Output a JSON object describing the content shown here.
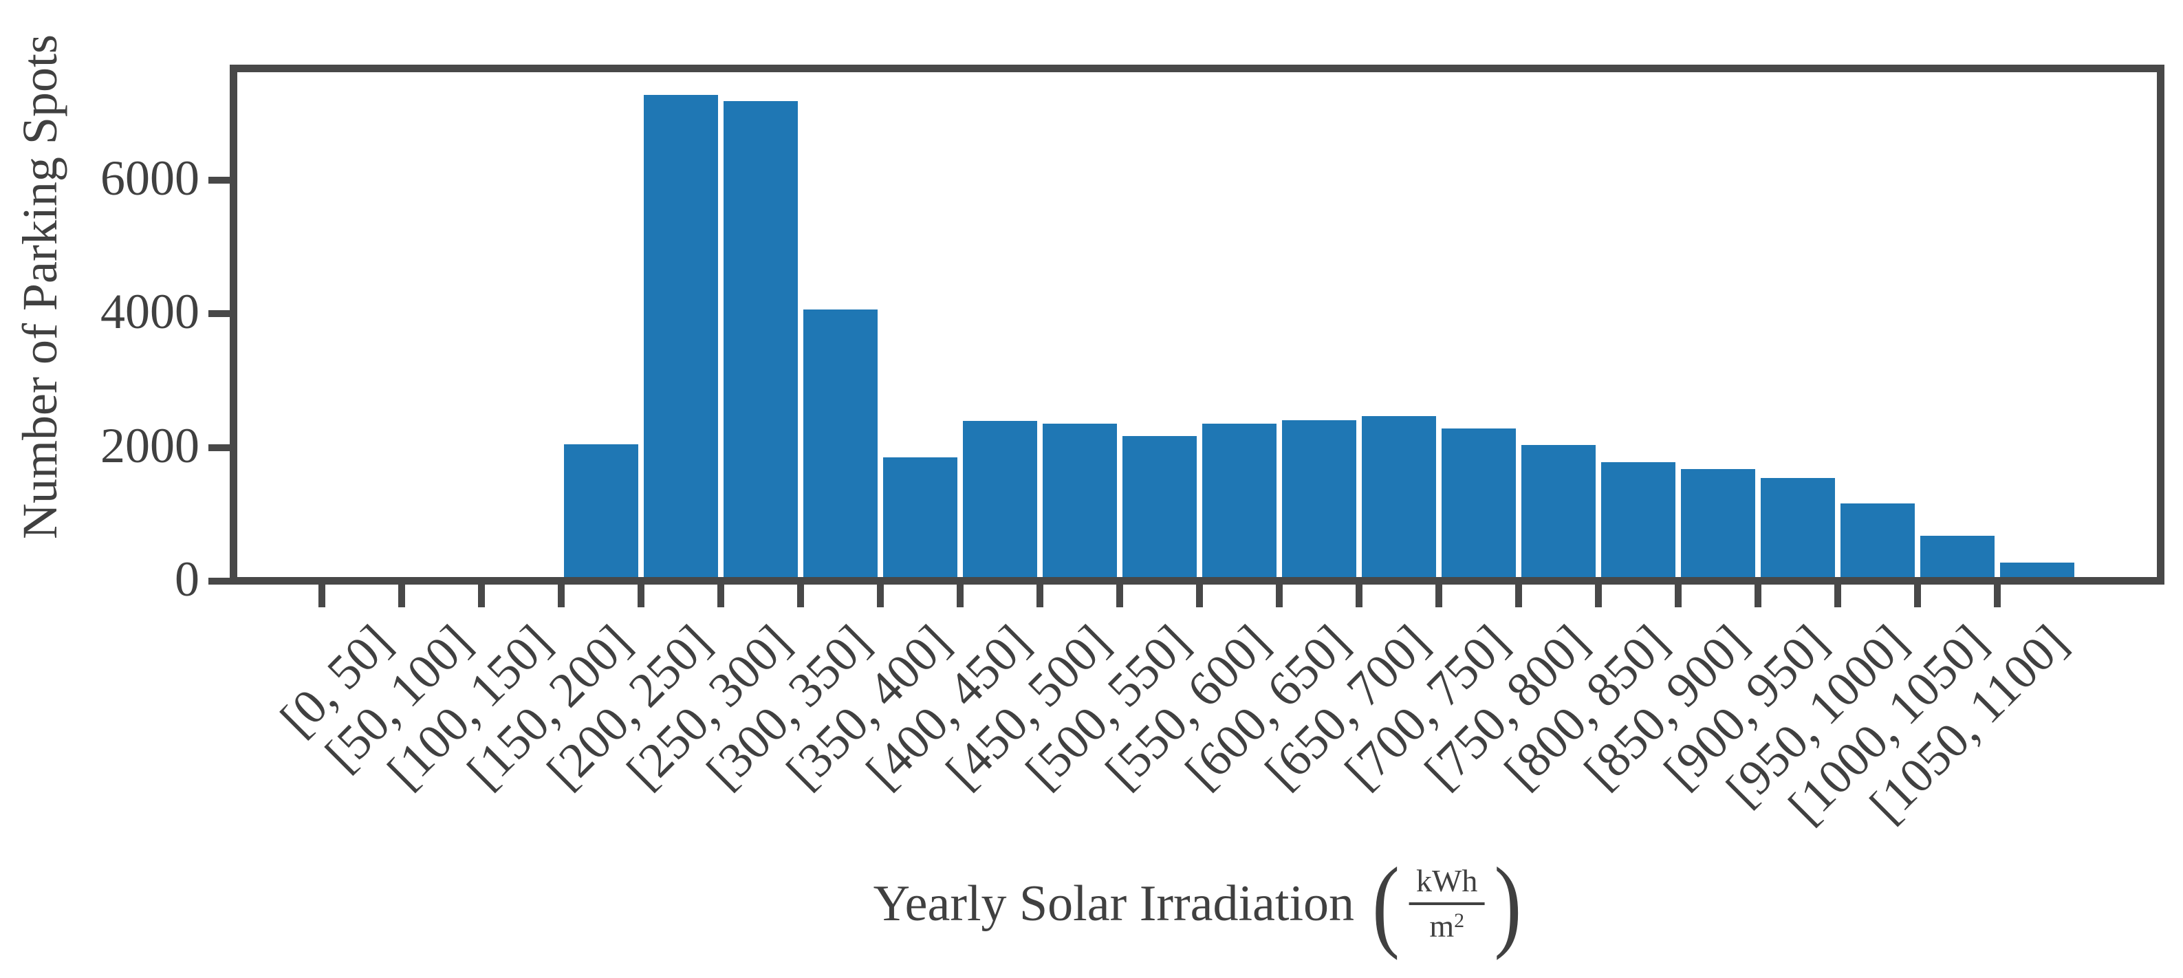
{
  "chart_data": {
    "type": "bar",
    "title": "",
    "categories": [
      "[0, 50]",
      "[50, 100]",
      "[100, 150]",
      "[150, 200]",
      "[200, 250]",
      "[250, 300]",
      "[300, 350]",
      "[350, 400]",
      "[400, 450]",
      "[450, 500]",
      "[500, 550]",
      "[550, 600]",
      "[600, 650]",
      "[650, 700]",
      "[700, 750]",
      "[750, 800]",
      "[800, 850]",
      "[850, 900]",
      "[900, 950]",
      "[950, 1000]",
      "[1000, 1050]",
      "[1050, 1100]"
    ],
    "values": [
      0,
      0,
      0,
      2050,
      7280,
      7180,
      4070,
      1850,
      2400,
      2360,
      2170,
      2360,
      2410,
      2470,
      2280,
      2040,
      1780,
      1680,
      1540,
      1160,
      680,
      280
    ],
    "ylabel": "Number of Parking Spots",
    "xlabel": {
      "prefix": "Yearly Solar Irradiation",
      "open_paren": "(",
      "unit_numerator": "kWh",
      "unit_denominator_base": "m",
      "unit_denominator_exponent": "2",
      "close_paren": ")"
    },
    "yticks": [
      "0",
      "2000",
      "4000",
      "6000"
    ],
    "ytick_values": [
      0,
      2000,
      4000,
      6000
    ],
    "ylim": [
      0,
      7630
    ],
    "grid": false,
    "legend_position": "none",
    "bar_color": "#1f77b4",
    "axis_color": "#484848",
    "text_color": "#404040"
  }
}
